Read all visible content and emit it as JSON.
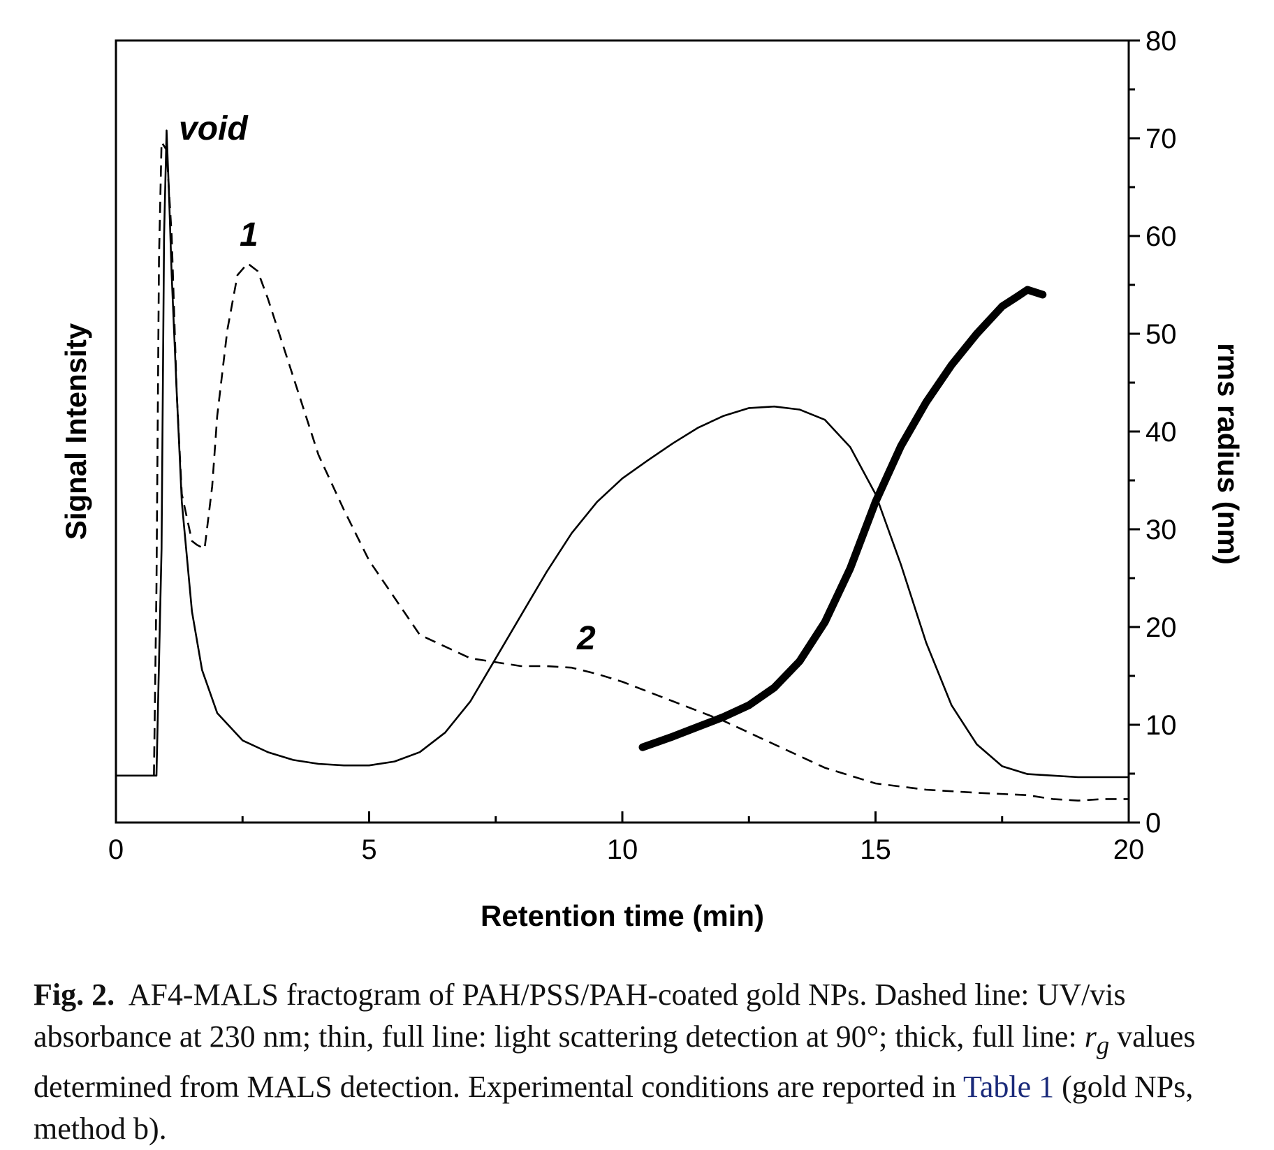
{
  "chart_data": {
    "type": "line",
    "xlabel": "Retention time (min)",
    "ylabel": "Signal Intensity",
    "y2label": "rms radius (nm)",
    "xlim": [
      0,
      20
    ],
    "ylim": [
      0,
      1
    ],
    "y2lim": [
      0,
      80
    ],
    "xticks": [
      "0",
      "5",
      "10",
      "15",
      "20"
    ],
    "y2ticks": [
      "0",
      "10",
      "20",
      "30",
      "40",
      "50",
      "60",
      "70",
      "80"
    ],
    "grid": false,
    "legend": "none",
    "annotations": [
      "void",
      "1",
      "2"
    ],
    "series": [
      {
        "style": "dashed",
        "axis": "left",
        "x": [
          0.75,
          0.8,
          0.85,
          0.9,
          1.0,
          1.1,
          1.2,
          1.3,
          1.5,
          1.6,
          1.75,
          1.9,
          2.0,
          2.2,
          2.4,
          2.6,
          2.8,
          3.0,
          3.5,
          4.0,
          4.5,
          5.0,
          6.0,
          7.0,
          7.5,
          8.0,
          8.5,
          9.0,
          9.5,
          10.0,
          11.0,
          12.0,
          13.0,
          14.0,
          15.0,
          16.0,
          17.0,
          18.0,
          18.5,
          19.0,
          19.5,
          20.0
        ],
        "y": [
          0.06,
          0.3,
          0.72,
          0.87,
          0.86,
          0.75,
          0.55,
          0.42,
          0.36,
          0.355,
          0.35,
          0.43,
          0.52,
          0.63,
          0.7,
          0.715,
          0.705,
          0.67,
          0.57,
          0.47,
          0.4,
          0.335,
          0.24,
          0.21,
          0.205,
          0.2,
          0.2,
          0.198,
          0.19,
          0.18,
          0.155,
          0.13,
          0.1,
          0.07,
          0.05,
          0.042,
          0.038,
          0.035,
          0.03,
          0.028,
          0.03,
          0.03
        ]
      },
      {
        "style": "solid-thin",
        "axis": "left",
        "x": [
          0.0,
          0.3,
          0.6,
          0.8,
          0.9,
          0.95,
          1.0,
          1.05,
          1.1,
          1.2,
          1.3,
          1.5,
          1.7,
          2.0,
          2.5,
          3.0,
          3.5,
          4.0,
          4.5,
          5.0,
          5.5,
          6.0,
          6.5,
          7.0,
          7.5,
          8.0,
          8.5,
          9.0,
          9.5,
          10.0,
          10.5,
          11.0,
          11.5,
          12.0,
          12.5,
          13.0,
          13.5,
          14.0,
          14.5,
          15.0,
          15.5,
          16.0,
          16.5,
          17.0,
          17.5,
          18.0,
          18.5,
          19.0,
          20.0
        ],
        "y": [
          0.06,
          0.06,
          0.06,
          0.06,
          0.35,
          0.75,
          0.885,
          0.8,
          0.7,
          0.55,
          0.41,
          0.27,
          0.195,
          0.14,
          0.105,
          0.09,
          0.08,
          0.075,
          0.073,
          0.073,
          0.078,
          0.09,
          0.115,
          0.155,
          0.21,
          0.265,
          0.32,
          0.37,
          0.41,
          0.44,
          0.463,
          0.485,
          0.505,
          0.52,
          0.53,
          0.532,
          0.528,
          0.515,
          0.48,
          0.42,
          0.33,
          0.23,
          0.15,
          0.1,
          0.072,
          0.062,
          0.06,
          0.058,
          0.058
        ]
      },
      {
        "style": "solid-thick",
        "axis": "right",
        "x": [
          10.4,
          11.0,
          11.5,
          12.0,
          12.5,
          13.0,
          13.5,
          14.0,
          14.5,
          15.0,
          15.5,
          16.0,
          16.5,
          17.0,
          17.5,
          17.8,
          18.0,
          18.3
        ],
        "y": [
          7.7,
          8.8,
          9.8,
          10.8,
          12.0,
          13.8,
          16.5,
          20.5,
          26.0,
          32.8,
          38.5,
          43.0,
          46.8,
          50.0,
          52.8,
          53.8,
          54.5,
          54.0
        ]
      }
    ]
  },
  "caption": {
    "label": "Fig. 2.",
    "text": "AF4-MALS fractogram of PAH/PSS/PAH-coated gold NPs. Dashed line: UV/vis absorbance at 230 nm; thin, full line: light scattering detection at 90°; thick, full line:",
    "rg_symbol": "r",
    "rg_subscript": "g",
    "text2": "values determined from MALS detection. Experimental conditions are reported in",
    "link": "Table 1",
    "text3": "(gold NPs, method b)."
  }
}
